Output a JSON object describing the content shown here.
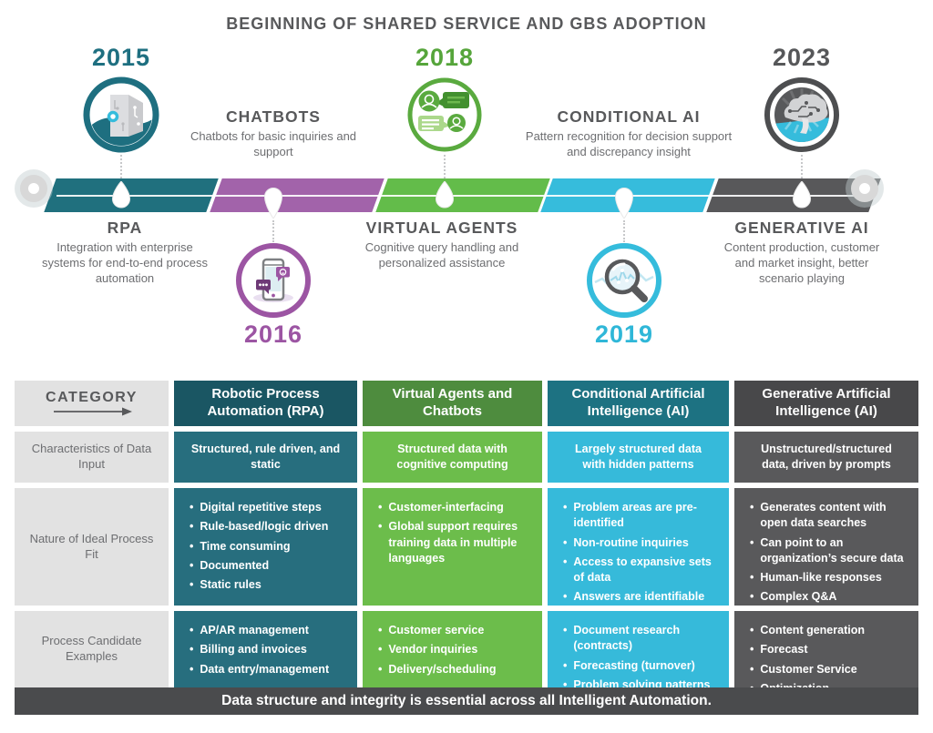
{
  "title": "BEGINNING OF SHARED SERVICE AND GBS ADOPTION",
  "timeline": {
    "milestones": [
      {
        "year": "2015",
        "accent": "#1e6f80",
        "segment_color": "#20707e",
        "title": "RPA",
        "description": "Integration with enterprise systems for end-to-end process automation",
        "icon": "building-circuit-icon"
      },
      {
        "year": "2016",
        "accent": "#9c55a3",
        "segment_color": "#a263aa",
        "title": "CHATBOTS",
        "description": "Chatbots for basic inquiries and support",
        "icon": "smartphone-chat-icon"
      },
      {
        "year": "2018",
        "accent": "#56a53b",
        "segment_color": "#63bc4a",
        "title": "VIRTUAL AGENTS",
        "description": "Cognitive query handling and personalized assistance",
        "icon": "chat-avatars-icon"
      },
      {
        "year": "2019",
        "accent": "#2fb7d8",
        "segment_color": "#36bcdc",
        "title": "CONDITIONAL AI",
        "description": "Pattern recognition for decision support and discrepancy insight",
        "icon": "magnifier-chart-icon"
      },
      {
        "year": "2023",
        "accent": "#565759",
        "segment_color": "#58585a",
        "title": "GENERATIVE AI",
        "description": "Content production, customer and market insight, better scenario playing",
        "icon": "brain-circuit-icon"
      }
    ]
  },
  "table": {
    "category_label": "CATEGORY",
    "columns": [
      {
        "title": "Robotic Process Automation (RPA)",
        "header_color": "#1a5663",
        "cell_color": "#276e7e"
      },
      {
        "title": "Virtual Agents and Chatbots",
        "header_color": "#4e8c3e",
        "cell_color": "#6cbd4b"
      },
      {
        "title": "Conditional Artificial Intelligence (AI)",
        "header_color": "#1d7282",
        "cell_color": "#36bada"
      },
      {
        "title": "Generative Artificial Intelligence (AI)",
        "header_color": "#48484a",
        "cell_color": "#59595b"
      }
    ],
    "rows": [
      {
        "label": "Characteristics of Data Input",
        "cells": [
          "Structured, rule driven, and static",
          "Structured data with cognitive computing",
          "Largely structured data with hidden patterns",
          "Unstructured/structured data, driven by prompts"
        ]
      },
      {
        "label": "Nature of Ideal Process Fit",
        "cells_lists": [
          [
            "Digital repetitive steps",
            "Rule-based/logic driven",
            "Time consuming",
            "Documented",
            "Static rules"
          ],
          [
            "Customer-interfacing",
            "Global support requires training data in multiple languages"
          ],
          [
            "Problem areas are pre-identified",
            "Non-routine inquiries",
            "Access to expansive sets of data",
            "Answers are identifiable by patterns"
          ],
          [
            "Generates content with open data searches",
            "Can point to an organization’s secure data",
            "Human-like responses",
            "Complex Q&A"
          ]
        ]
      },
      {
        "label": "Process Candidate Examples",
        "cells_lists": [
          [
            "AP/AR management",
            "Billing and invoices",
            "Data entry/management"
          ],
          [
            "Customer service",
            "Vendor inquiries",
            "Delivery/scheduling"
          ],
          [
            "Document research (contracts)",
            "Forecasting (turnover)",
            "Problem solving patterns"
          ],
          [
            "Content generation",
            "Forecast",
            "Customer Service",
            "Optimization"
          ]
        ]
      }
    ],
    "footer": "Data structure and integrity is essential across all Intelligent Automation."
  }
}
